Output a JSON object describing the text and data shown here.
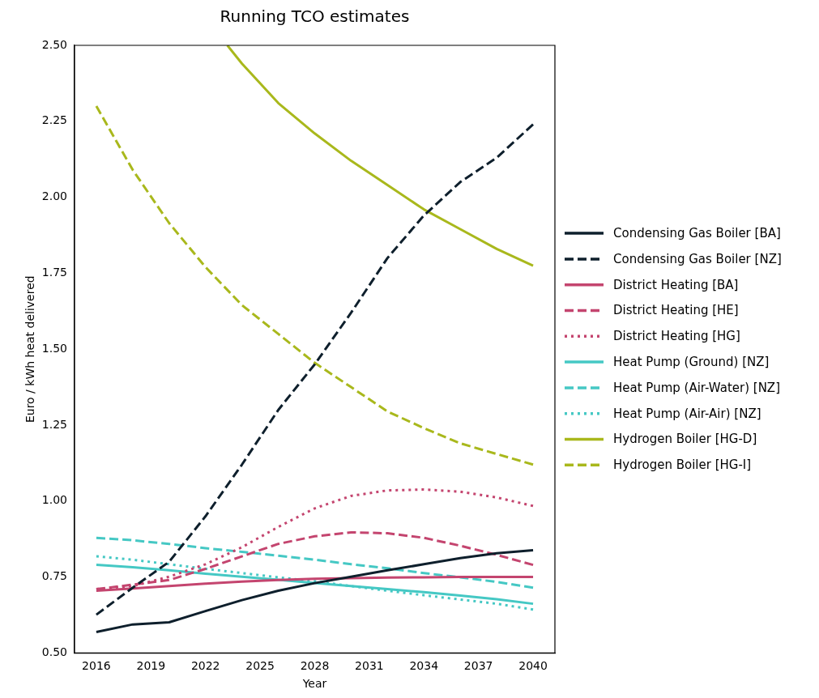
{
  "chart_data": {
    "type": "line",
    "title": "Running TCO estimates",
    "xlabel": "Year",
    "ylabel": "Euro / kWh heat delivered",
    "x": [
      2016,
      2018,
      2020,
      2022,
      2024,
      2026,
      2028,
      2030,
      2032,
      2034,
      2036,
      2038,
      2040
    ],
    "xlim": [
      2014.8,
      2041.2
    ],
    "xticks": [
      2016,
      2019,
      2022,
      2025,
      2028,
      2031,
      2034,
      2037,
      2040
    ],
    "ylim": [
      0.5,
      2.5
    ],
    "yticks": [
      {
        "value": 0.5,
        "label": "0.50"
      },
      {
        "value": 0.75,
        "label": "0.75"
      },
      {
        "value": 1,
        "label": "1.00"
      },
      {
        "value": 1.25,
        "label": "1.25"
      },
      {
        "value": 1.5,
        "label": "1.50"
      },
      {
        "value": 1.75,
        "label": "1.75"
      },
      {
        "value": 2,
        "label": "2.00"
      },
      {
        "value": 2.25,
        "label": "2.25"
      },
      {
        "value": 2.5,
        "label": "2.50"
      }
    ],
    "legend": "right",
    "marker": "none",
    "series": [
      {
        "name": "Condensing Gas Boiler [BA]",
        "color": "#0e1f2c",
        "line_style": "solid",
        "values": [
          0.569,
          0.594,
          0.601,
          0.638,
          0.674,
          0.705,
          0.73,
          0.751,
          0.772,
          0.792,
          0.812,
          0.828,
          0.838
        ]
      },
      {
        "name": "Condensing Gas Boiler [NZ]",
        "color": "#0e1f2c",
        "line_style": "dashed",
        "values": [
          0.626,
          0.715,
          0.8,
          0.95,
          1.12,
          1.3,
          1.45,
          1.62,
          1.8,
          1.94,
          2.05,
          2.13,
          2.24
        ]
      },
      {
        "name": "District Heating [BA]",
        "color": "#c4456f",
        "line_style": "solid",
        "values": [
          0.705,
          0.712,
          0.72,
          0.728,
          0.735,
          0.74,
          0.744,
          0.746,
          0.748,
          0.749,
          0.75,
          0.75,
          0.75
        ]
      },
      {
        "name": "District Heating [HE]",
        "color": "#c4456f",
        "line_style": "dashed",
        "values": [
          0.71,
          0.725,
          0.74,
          0.777,
          0.818,
          0.859,
          0.884,
          0.897,
          0.894,
          0.879,
          0.853,
          0.823,
          0.79
        ]
      },
      {
        "name": "District Heating [HG]",
        "color": "#c4456f",
        "line_style": "dotted",
        "values": [
          0.71,
          0.72,
          0.751,
          0.792,
          0.848,
          0.915,
          0.976,
          1.017,
          1.035,
          1.038,
          1.031,
          1.012,
          0.984
        ]
      },
      {
        "name": "Heat Pump (Ground) [NZ]",
        "color": "#45c8c4",
        "line_style": "solid",
        "values": [
          0.79,
          0.782,
          0.772,
          0.761,
          0.751,
          0.741,
          0.73,
          0.72,
          0.71,
          0.7,
          0.689,
          0.677,
          0.662
        ]
      },
      {
        "name": "Heat Pump (Air-Water) [NZ]",
        "color": "#45c8c4",
        "line_style": "dashed",
        "values": [
          0.879,
          0.871,
          0.859,
          0.845,
          0.833,
          0.82,
          0.807,
          0.792,
          0.779,
          0.763,
          0.749,
          0.734,
          0.715
        ]
      },
      {
        "name": "Heat Pump (Air-Air) [NZ]",
        "color": "#45c8c4",
        "line_style": "dotted",
        "values": [
          0.818,
          0.807,
          0.792,
          0.777,
          0.763,
          0.749,
          0.736,
          0.72,
          0.705,
          0.69,
          0.676,
          0.662,
          0.643
        ]
      },
      {
        "name": "Hydrogen Boiler [HG-D]",
        "color": "#a9b81c",
        "line_style": "solid",
        "x": [
          2023.2,
          2024,
          2026,
          2028,
          2030,
          2032,
          2034,
          2036,
          2038,
          2040
        ],
        "values": [
          2.5,
          2.44,
          2.31,
          2.21,
          2.12,
          2.04,
          1.96,
          1.895,
          1.83,
          1.775
        ]
      },
      {
        "name": "Hydrogen Boiler [HG-I]",
        "color": "#a9b81c",
        "line_style": "dashed",
        "values": [
          2.3,
          2.09,
          1.915,
          1.77,
          1.645,
          1.55,
          1.455,
          1.375,
          1.295,
          1.24,
          1.19,
          1.155,
          1.12
        ]
      }
    ]
  }
}
